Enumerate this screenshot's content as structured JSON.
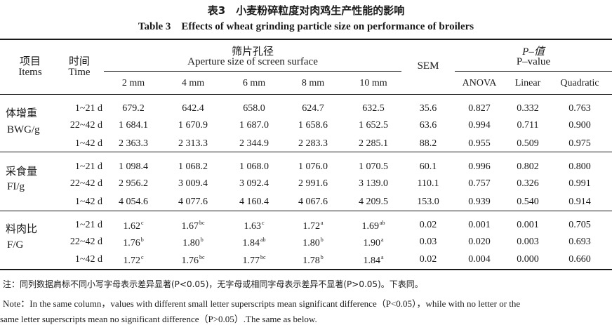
{
  "titles": {
    "cn": "表3　小麦粉碎粒度对肉鸡生产性能的影响",
    "en": "Table 3　Effects of wheat grinding particle size on performance of broilers"
  },
  "header": {
    "items_cn": "项目",
    "items_en": "Items",
    "time_cn": "时间",
    "time_en": "Time",
    "aperture_cn": "筛片孔径",
    "aperture_en": "Aperture size of screen surface",
    "sem": "SEM",
    "p_cn": "P–值",
    "p_en": "P–value",
    "sizes": [
      "2 mm",
      "4 mm",
      "6 mm",
      "8 mm",
      "10 mm"
    ],
    "pcols": [
      "ANOVA",
      "Linear",
      "Quadratic"
    ]
  },
  "groups": [
    {
      "label_cn": "体增重",
      "label_en": "BWG/g",
      "rows": [
        {
          "time": "1~21 d",
          "v": [
            "679.2",
            "642.4",
            "658.0",
            "624.7",
            "632.5"
          ],
          "s": [
            "",
            "",
            "",
            "",
            ""
          ],
          "sem": "35.6",
          "p": [
            "0.827",
            "0.332",
            "0.763"
          ]
        },
        {
          "time": "22~42 d",
          "v": [
            "1 684.1",
            "1 670.9",
            "1 687.0",
            "1 658.6",
            "1 652.5"
          ],
          "s": [
            "",
            "",
            "",
            "",
            ""
          ],
          "sem": "63.6",
          "p": [
            "0.994",
            "0.711",
            "0.900"
          ]
        },
        {
          "time": "1~42 d",
          "v": [
            "2 363.3",
            "2 313.3",
            "2 344.9",
            "2 283.3",
            "2 285.1"
          ],
          "s": [
            "",
            "",
            "",
            "",
            ""
          ],
          "sem": "88.2",
          "p": [
            "0.955",
            "0.509",
            "0.975"
          ]
        }
      ]
    },
    {
      "label_cn": "采食量",
      "label_en": "FI/g",
      "rows": [
        {
          "time": "1~21 d",
          "v": [
            "1 098.4",
            "1 068.2",
            "1 068.0",
            "1 076.0",
            "1 070.5"
          ],
          "s": [
            "",
            "",
            "",
            "",
            ""
          ],
          "sem": "60.1",
          "p": [
            "0.996",
            "0.802",
            "0.800"
          ]
        },
        {
          "time": "22~42 d",
          "v": [
            "2 956.2",
            "3 009.4",
            "3 092.4",
            "2 991.6",
            "3 139.0"
          ],
          "s": [
            "",
            "",
            "",
            "",
            ""
          ],
          "sem": "110.1",
          "p": [
            "0.757",
            "0.326",
            "0.991"
          ]
        },
        {
          "time": "1~42 d",
          "v": [
            "4 054.6",
            "4 077.6",
            "4 160.4",
            "4 067.6",
            "4 209.5"
          ],
          "s": [
            "",
            "",
            "",
            "",
            ""
          ],
          "sem": "153.0",
          "p": [
            "0.939",
            "0.540",
            "0.914"
          ]
        }
      ]
    },
    {
      "label_cn": "料肉比",
      "label_en": "F/G",
      "rows": [
        {
          "time": "1~21 d",
          "v": [
            "1.62",
            "1.67",
            "1.63",
            "1.72",
            "1.69"
          ],
          "s": [
            "c",
            "bc",
            "c",
            "a",
            "ab"
          ],
          "sem": "0.02",
          "p": [
            "0.001",
            "0.001",
            "0.705"
          ]
        },
        {
          "time": "22~42 d",
          "v": [
            "1.76",
            "1.80",
            "1.84",
            "1.80",
            "1.90"
          ],
          "s": [
            "b",
            "b",
            "ab",
            "b",
            "a"
          ],
          "sem": "0.03",
          "p": [
            "0.020",
            "0.003",
            "0.693"
          ]
        },
        {
          "time": "1~42 d",
          "v": [
            "1.72",
            "1.76",
            "1.77",
            "1.78",
            "1.84"
          ],
          "s": [
            "c",
            "bc",
            "bc",
            "b",
            "a"
          ],
          "sem": "0.02",
          "p": [
            "0.004",
            "0.000",
            "0.660"
          ]
        }
      ]
    }
  ],
  "notes": {
    "cn": "注：同列数据肩标不同小写字母表示差异显著(P<0.05)，无字母或相同字母表示差异不显著(P>0.05)。下表同。",
    "en1": "Note：In the same column，values with different small letter superscripts mean significant difference（P<0.05），while with no letter or the",
    "en2": "same letter superscripts mean no significant difference（P>0.05）.The same as below."
  }
}
